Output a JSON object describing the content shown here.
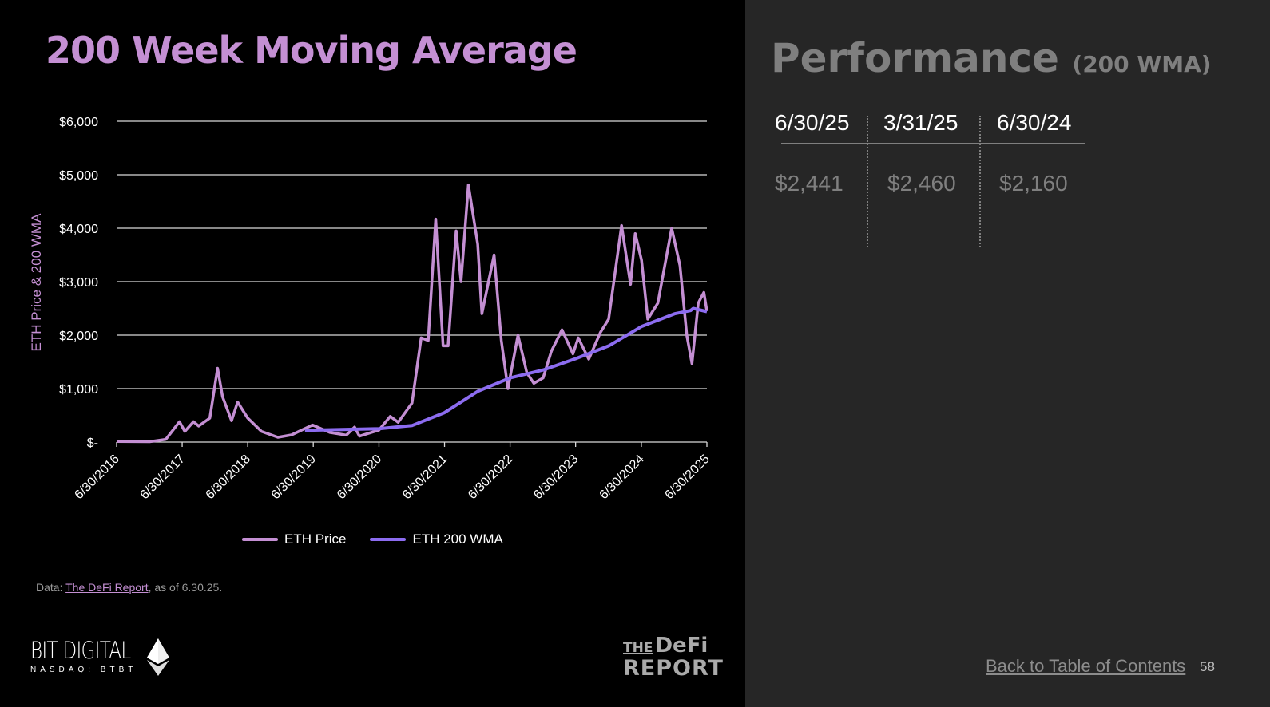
{
  "slide": {
    "title": "200 Week Moving Average",
    "source_prefix": "Data: ",
    "source_link": "The DeFi Report",
    "source_suffix": ", as of 6.30.25.",
    "logo_left": "BIT DIGITAL",
    "logo_left_sub": "NASDAQ: BTBT",
    "logo_right_top_small": "THE",
    "logo_right_top": "DeFi",
    "logo_right_bottom": "REPORT",
    "page_number": "58",
    "back_link": "Back to Table of Contents"
  },
  "performance": {
    "title": "Performance",
    "subtitle": "(200 WMA)",
    "columns": [
      {
        "date": "6/30/25",
        "value": "$2,441"
      },
      {
        "date": "3/31/25",
        "value": "$2,460"
      },
      {
        "date": "6/30/24",
        "value": "$2,160"
      }
    ]
  },
  "colors": {
    "title": "#c48fd3",
    "eth_price": "#c48fd3",
    "eth_200wma": "#8c6cf0",
    "right_panel_bg": "#262626"
  },
  "chart_data": {
    "type": "line",
    "title": "",
    "ylabel": "ETH Price & 200 WMA",
    "xlabel": "",
    "ylim": [
      0,
      6000
    ],
    "xlim": [
      "2016-06-30",
      "2025-06-30"
    ],
    "grid": true,
    "legend": "bottom",
    "y_ticks": [
      0,
      1000,
      2000,
      3000,
      4000,
      5000,
      6000
    ],
    "y_tick_labels": [
      "$-",
      "$1,000",
      "$2,000",
      "$3,000",
      "$4,000",
      "$5,000",
      "$6,000"
    ],
    "x_ticks": [
      "2016-06-30",
      "2017-06-30",
      "2018-06-30",
      "2019-06-30",
      "2020-06-30",
      "2021-06-30",
      "2022-06-30",
      "2023-06-30",
      "2024-06-30",
      "2025-06-30"
    ],
    "x_tick_labels": [
      "6/30/2016",
      "6/30/2017",
      "6/30/2018",
      "6/30/2019",
      "6/30/2020",
      "6/30/2021",
      "6/30/2022",
      "6/30/2023",
      "6/30/2024",
      "6/30/2025"
    ],
    "series": [
      {
        "name": "ETH Price",
        "points": [
          [
            "2016-06-30",
            12
          ],
          [
            "2016-12-31",
            8
          ],
          [
            "2017-03-31",
            50
          ],
          [
            "2017-06-15",
            380
          ],
          [
            "2017-07-15",
            200
          ],
          [
            "2017-09-01",
            380
          ],
          [
            "2017-09-30",
            300
          ],
          [
            "2017-12-01",
            450
          ],
          [
            "2018-01-13",
            1380
          ],
          [
            "2018-02-10",
            850
          ],
          [
            "2018-04-01",
            400
          ],
          [
            "2018-05-05",
            750
          ],
          [
            "2018-06-30",
            450
          ],
          [
            "2018-09-15",
            200
          ],
          [
            "2018-12-15",
            90
          ],
          [
            "2019-03-01",
            135
          ],
          [
            "2019-06-26",
            320
          ],
          [
            "2019-09-30",
            180
          ],
          [
            "2019-12-31",
            130
          ],
          [
            "2020-02-15",
            280
          ],
          [
            "2020-03-13",
            110
          ],
          [
            "2020-06-30",
            225
          ],
          [
            "2020-09-01",
            480
          ],
          [
            "2020-10-15",
            370
          ],
          [
            "2020-12-31",
            730
          ],
          [
            "2021-02-20",
            1950
          ],
          [
            "2021-03-31",
            1900
          ],
          [
            "2021-05-12",
            4170
          ],
          [
            "2021-06-22",
            1800
          ],
          [
            "2021-07-20",
            1800
          ],
          [
            "2021-09-03",
            3950
          ],
          [
            "2021-09-30",
            3000
          ],
          [
            "2021-11-10",
            4810
          ],
          [
            "2022-01-01",
            3700
          ],
          [
            "2022-01-24",
            2400
          ],
          [
            "2022-04-02",
            3500
          ],
          [
            "2022-05-12",
            1900
          ],
          [
            "2022-06-18",
            1000
          ],
          [
            "2022-08-13",
            2000
          ],
          [
            "2022-10-01",
            1300
          ],
          [
            "2022-11-09",
            1100
          ],
          [
            "2022-12-31",
            1200
          ],
          [
            "2023-02-15",
            1700
          ],
          [
            "2023-04-15",
            2100
          ],
          [
            "2023-06-15",
            1650
          ],
          [
            "2023-07-15",
            1950
          ],
          [
            "2023-09-11",
            1550
          ],
          [
            "2023-11-15",
            2050
          ],
          [
            "2023-12-31",
            2300
          ],
          [
            "2024-03-12",
            4050
          ],
          [
            "2024-05-01",
            2950
          ],
          [
            "2024-05-27",
            3900
          ],
          [
            "2024-07-01",
            3400
          ],
          [
            "2024-08-05",
            2300
          ],
          [
            "2024-09-30",
            2600
          ],
          [
            "2024-12-16",
            4000
          ],
          [
            "2025-01-31",
            3300
          ],
          [
            "2025-03-10",
            2000
          ],
          [
            "2025-04-08",
            1470
          ],
          [
            "2025-05-13",
            2600
          ],
          [
            "2025-06-13",
            2800
          ],
          [
            "2025-06-30",
            2450
          ]
        ]
      },
      {
        "name": "ETH 200 WMA",
        "points": [
          [
            "2019-05-15",
            220
          ],
          [
            "2020-06-30",
            250
          ],
          [
            "2021-01-01",
            310
          ],
          [
            "2021-06-30",
            550
          ],
          [
            "2022-01-01",
            950
          ],
          [
            "2022-06-30",
            1200
          ],
          [
            "2023-01-01",
            1350
          ],
          [
            "2023-06-30",
            1560
          ],
          [
            "2024-01-01",
            1800
          ],
          [
            "2024-06-30",
            2160
          ],
          [
            "2025-01-01",
            2400
          ],
          [
            "2025-03-31",
            2460
          ],
          [
            "2025-04-15",
            2500
          ],
          [
            "2025-06-30",
            2441
          ]
        ]
      }
    ]
  }
}
